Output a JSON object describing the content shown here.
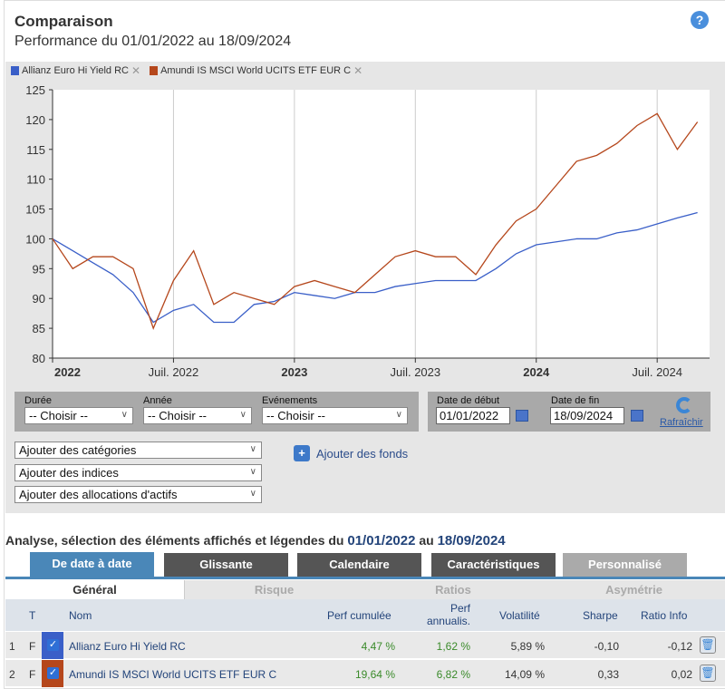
{
  "header": {
    "title": "Comparaison",
    "subtitle": "Performance du 01/01/2022 au 18/09/2024",
    "help": "?"
  },
  "legend": [
    {
      "name": "Allianz Euro Hi Yield RC",
      "color": "#3a5fc8"
    },
    {
      "name": "Amundi IS MSCI World UCITS ETF EUR C",
      "color": "#b5471c"
    }
  ],
  "legend_remove": "✕",
  "chart_data": {
    "type": "line",
    "ylim": [
      80,
      125
    ],
    "yticks": [
      "125",
      "120",
      "115",
      "110",
      "105",
      "100",
      "95",
      "90",
      "85",
      "80"
    ],
    "xticks": [
      {
        "label": "2022",
        "bold": true,
        "month": 0
      },
      {
        "label": "Juil. 2022",
        "bold": false,
        "month": 6
      },
      {
        "label": "2023",
        "bold": true,
        "month": 12
      },
      {
        "label": "Juil. 2023",
        "bold": false,
        "month": 18
      },
      {
        "label": "2024",
        "bold": true,
        "month": 24
      },
      {
        "label": "Juil. 2024",
        "bold": false,
        "month": 30
      }
    ],
    "x_range_months": [
      0,
      32.6
    ],
    "series": [
      {
        "name": "Allianz Euro Hi Yield RC",
        "color": "#3a5fc8",
        "values": [
          100,
          98,
          96,
          94,
          91,
          86,
          88,
          89,
          86,
          86,
          89,
          89.5,
          91,
          90.5,
          90,
          91,
          91,
          92,
          92.5,
          93,
          93,
          93,
          95,
          97.5,
          99,
          99.5,
          100,
          100,
          101,
          101.5,
          102.5,
          103.5,
          104.4
        ]
      },
      {
        "name": "Amundi IS MSCI World UCITS ETF EUR C",
        "color": "#b5471c",
        "values": [
          100,
          95,
          97,
          97,
          95,
          85,
          93,
          98,
          89,
          91,
          90,
          89,
          92,
          93,
          92,
          91,
          94,
          97,
          98,
          97,
          97,
          94,
          99,
          103,
          105,
          109,
          113,
          114,
          116,
          119,
          121,
          115,
          119.6
        ]
      }
    ]
  },
  "filters": {
    "duree_label": "Durée",
    "annee_label": "Année",
    "evenements_label": "Evénements",
    "choose": "-- Choisir --",
    "debut_label": "Date de début",
    "fin_label": "Date de fin",
    "debut": "01/01/2022",
    "fin": "18/09/2024",
    "refresh": "Rafraîchir"
  },
  "adders": {
    "categories": "Ajouter des catégories",
    "indices": "Ajouter des indices",
    "allocations": "Ajouter des allocations d'actifs",
    "fonds": "Ajouter des fonds"
  },
  "analysis": {
    "prefix": "Analyse, sélection des éléments affichés et légendes du",
    "from": "01/01/2022",
    "mid": "au",
    "to": "18/09/2024"
  },
  "tabs": [
    "De date à date",
    "Glissante",
    "Calendaire",
    "Caractéristiques",
    "Personnalisé"
  ],
  "subtabs": [
    "Général",
    "Risque",
    "Ratios",
    "Asymétrie"
  ],
  "table": {
    "headers": {
      "t": "T",
      "nom": "Nom",
      "perf_cum": "Perf cumulée",
      "perf_ann1": "Perf",
      "perf_ann2": "annualis.",
      "vol": "Volatilité",
      "sharpe": "Sharpe",
      "ratio": "Ratio Info"
    },
    "rows": [
      {
        "n": "1",
        "t": "F",
        "nom": "Allianz Euro Hi Yield RC",
        "perf_cum": "4,47 %",
        "perf_ann": "1,62 %",
        "vol": "5,89 %",
        "sharpe": "-0,10",
        "ratio": "-0,12",
        "color": "#3a5fc8"
      },
      {
        "n": "2",
        "t": "F",
        "nom": "Amundi IS MSCI World UCITS ETF EUR C",
        "perf_cum": "19,64 %",
        "perf_ann": "6,82 %",
        "vol": "14,09 %",
        "sharpe": "0,33",
        "ratio": "0,02",
        "color": "#b5471c"
      }
    ]
  }
}
